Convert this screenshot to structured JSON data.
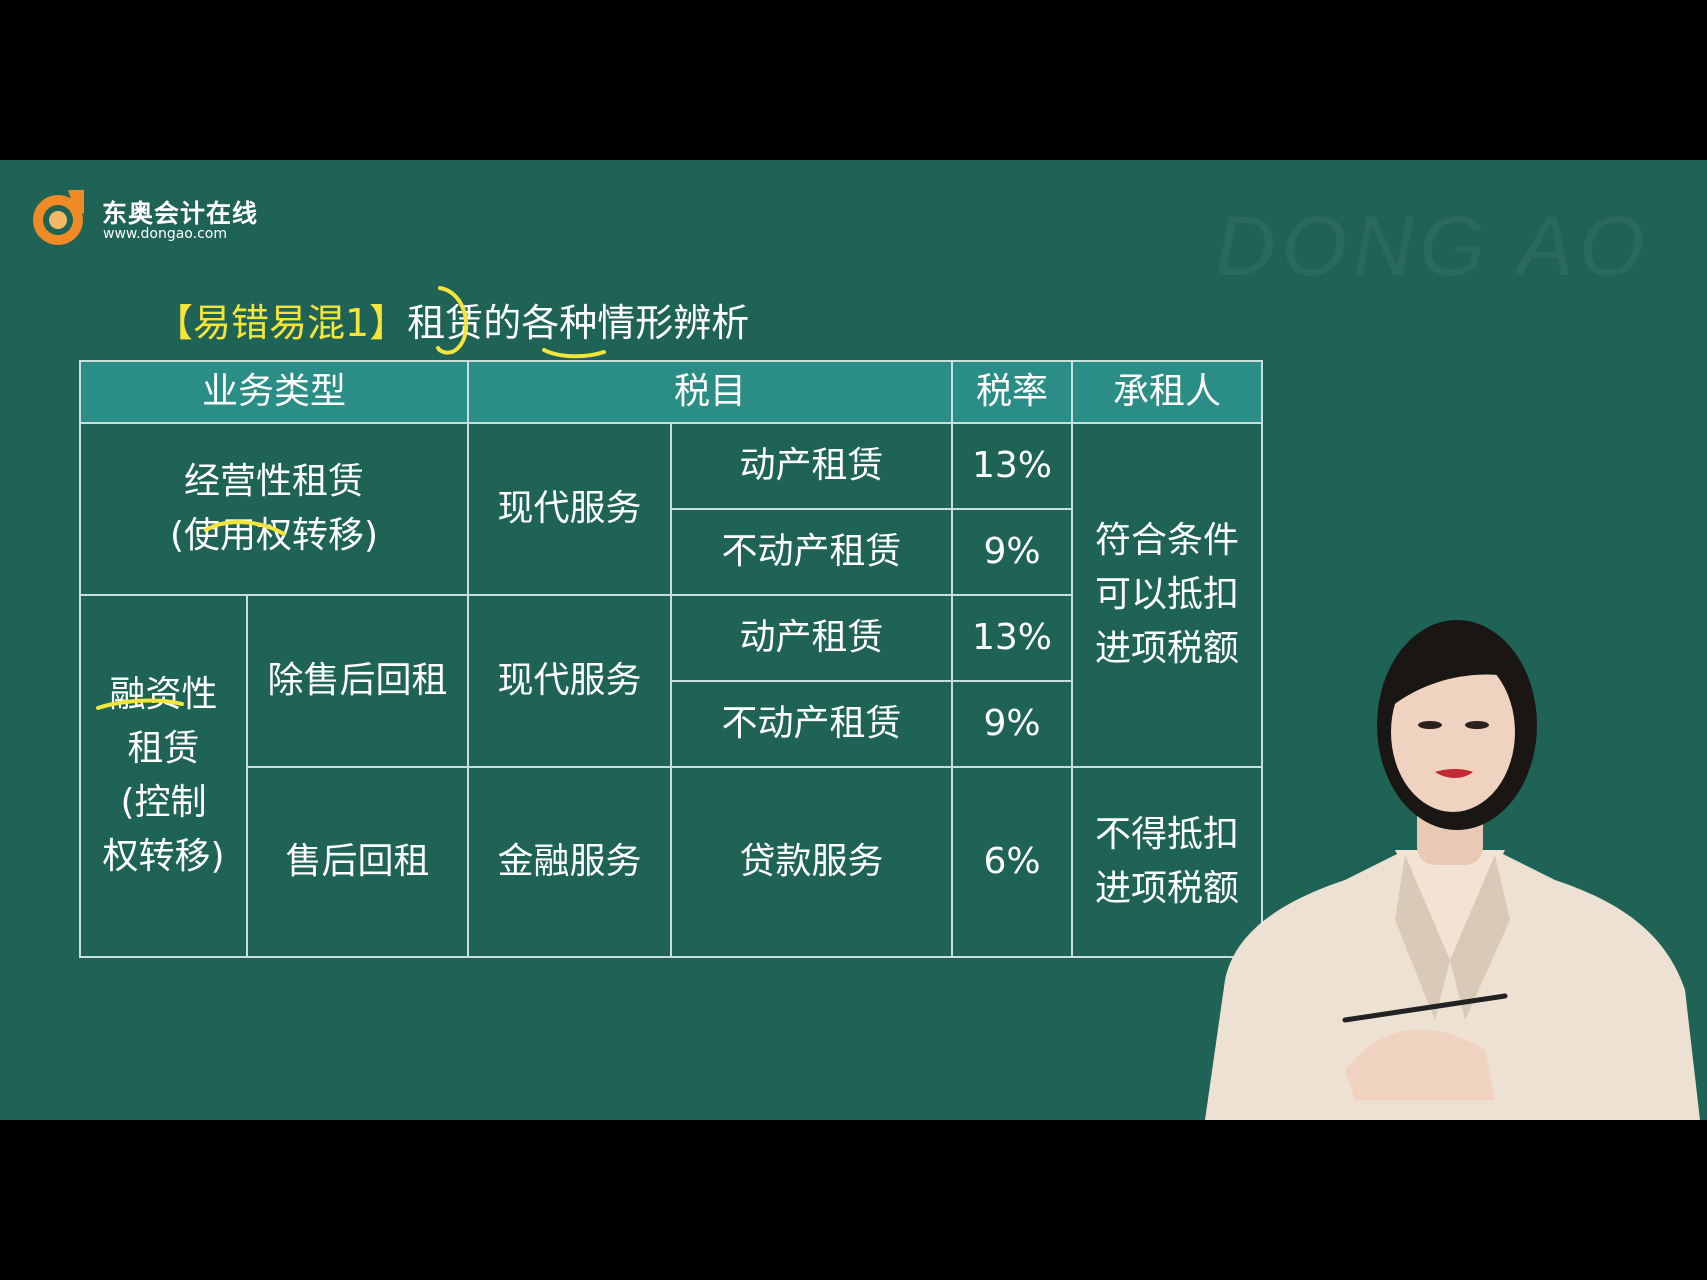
{
  "logo": {
    "name_cn": "东奥会计在线",
    "url": "www.dongao.com",
    "brand_color": "#f08a24"
  },
  "watermark": "DONG AO",
  "title": {
    "tag": "【易错易混1】",
    "text": "租赁的各种情形辨析"
  },
  "table": {
    "headers": [
      "业务类型",
      "税目",
      "税率",
      "承租人"
    ],
    "operating": {
      "type_line1": "经营性租赁",
      "type_line2": "(使用权转移)",
      "category": "现代服务"
    },
    "finance": {
      "type_line1": "融资性",
      "type_line2": "租赁",
      "type_line3": "(控制",
      "type_line4": "权转移)",
      "sub_non_leaseback": "除售后回租",
      "sub_leaseback": "售后回租",
      "category_modern": "现代服务",
      "category_financial": "金融服务"
    },
    "items": {
      "movable": "动产租赁",
      "immovable": "不动产租赁",
      "loan": "贷款服务"
    },
    "rates": {
      "r13": "13%",
      "r9": "9%",
      "r6": "6%"
    },
    "lessee_deductible": [
      "符合条件",
      "可以抵扣",
      "进项税额"
    ],
    "lessee_nondeductible": [
      "不得抵扣",
      "进项税额"
    ]
  },
  "colors": {
    "board": "#1e6355",
    "header": "#2b8e86",
    "highlight": "#f5e53a"
  }
}
